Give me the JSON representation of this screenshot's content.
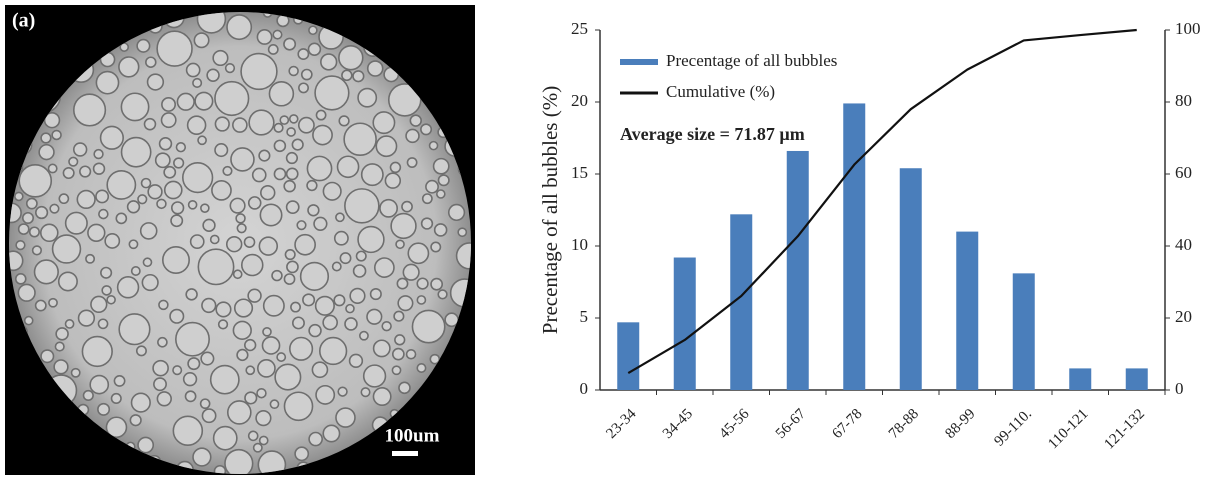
{
  "panel_label": "(a)",
  "scale_bar": "100um",
  "chart_data": {
    "type": "bar",
    "ylabel": "Precentage of all bubbles (%)",
    "annotation": "Average size = 71.87 µm",
    "categories": [
      "23-34",
      "34-45",
      "45-56",
      "56-67",
      "67-78",
      "78-88",
      "88-99",
      "99-110.",
      "110-121",
      "121-132"
    ],
    "series": [
      {
        "name": "Precentage of all bubbles",
        "type": "bar",
        "color": "#4a7ebb",
        "values": [
          4.7,
          9.2,
          12.2,
          16.6,
          19.9,
          15.4,
          11.0,
          8.1,
          1.5,
          1.5
        ]
      },
      {
        "name": "Cumulative (%)",
        "type": "line",
        "axis": "y2",
        "color": "#111111",
        "values": [
          4.7,
          13.9,
          26.1,
          42.7,
          62.6,
          78.0,
          89.0,
          97.1,
          98.6,
          100
        ]
      }
    ],
    "ylim": [
      0,
      25
    ],
    "yticks": [
      0,
      5,
      10,
      15,
      20,
      25
    ],
    "y2lim": [
      0,
      100
    ],
    "y2ticks": [
      0,
      20,
      40,
      60,
      80,
      100
    ],
    "legend": "upper-left"
  }
}
